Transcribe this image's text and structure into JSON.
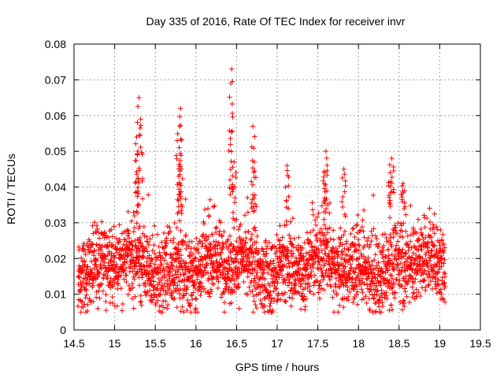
{
  "chart_data": {
    "type": "scatter",
    "title": "Day 335 of 2016, Rate Of TEC Index for receiver invr",
    "xlabel": "GPS time / hours",
    "ylabel": "ROTI / TECUs",
    "xlim": [
      14.5,
      19.5
    ],
    "ylim": [
      0,
      0.08
    ],
    "xticks": [
      14.5,
      15,
      15.5,
      16,
      16.5,
      17,
      17.5,
      18,
      18.5,
      19,
      19.5
    ],
    "xtick_labels": [
      "14.5",
      "15",
      "15.5",
      "16",
      "16.5",
      "17",
      "17.5",
      "18",
      "18.5",
      "19",
      "19.5"
    ],
    "yticks": [
      0,
      0.01,
      0.02,
      0.03,
      0.04,
      0.05,
      0.06,
      0.07,
      0.08
    ],
    "ytick_labels": [
      "0",
      "0.01",
      "0.02",
      "0.03",
      "0.04",
      "0.05",
      "0.06",
      "0.07",
      "0.08"
    ],
    "grid": true,
    "marker": "+",
    "color": "#ff0000",
    "series": [
      {
        "name": "ROTI",
        "x_range": [
          14.55,
          19.07
        ],
        "bulk_y_range": [
          0.005,
          0.035
        ],
        "peaks": [
          {
            "x": 15.27,
            "y": 0.054
          },
          {
            "x": 15.3,
            "y": 0.065
          },
          {
            "x": 15.32,
            "y": 0.059
          },
          {
            "x": 15.28,
            "y": 0.049
          },
          {
            "x": 15.77,
            "y": 0.053
          },
          {
            "x": 15.81,
            "y": 0.062
          },
          {
            "x": 15.8,
            "y": 0.057
          },
          {
            "x": 15.82,
            "y": 0.045
          },
          {
            "x": 16.44,
            "y": 0.073
          },
          {
            "x": 16.43,
            "y": 0.069
          },
          {
            "x": 16.47,
            "y": 0.047
          },
          {
            "x": 16.7,
            "y": 0.057
          },
          {
            "x": 16.72,
            "y": 0.047
          },
          {
            "x": 17.12,
            "y": 0.046
          },
          {
            "x": 17.6,
            "y": 0.05
          },
          {
            "x": 17.58,
            "y": 0.044
          },
          {
            "x": 17.82,
            "y": 0.045
          },
          {
            "x": 18.41,
            "y": 0.048
          },
          {
            "x": 18.39,
            "y": 0.044
          },
          {
            "x": 18.55,
            "y": 0.041
          }
        ]
      }
    ]
  }
}
